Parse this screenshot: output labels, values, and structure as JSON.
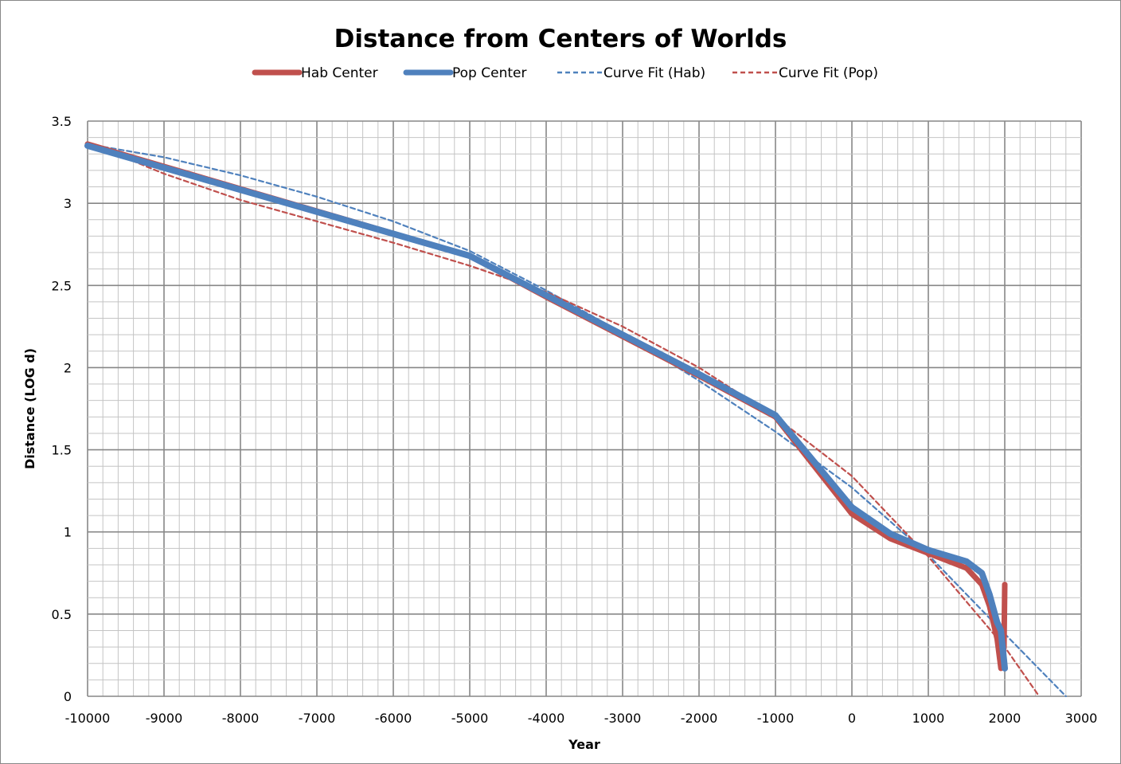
{
  "chart_data": {
    "type": "line",
    "title": "Distance from Centers of Worlds",
    "xlabel": "Year",
    "ylabel": "Distance (LOG d)",
    "xlim": [
      -10000,
      3000
    ],
    "ylim": [
      0,
      3.5
    ],
    "xticks": [
      "-10000",
      "-9000",
      "-8000",
      "-7000",
      "-6000",
      "-5000",
      "-4000",
      "-3000",
      "-2000",
      "-1000",
      "0",
      "1000",
      "2000",
      "3000"
    ],
    "yticks": [
      "0",
      "0.5",
      "1",
      "1.5",
      "2",
      "2.5",
      "3",
      "3.5"
    ],
    "grid": true,
    "legend_position": "top",
    "series": [
      {
        "name": "Hab Center",
        "color": "#c0504d",
        "style": "solid",
        "x": [
          -10000,
          -5000,
          -4000,
          -2000,
          -1000,
          0,
          500,
          1000,
          1500,
          1700,
          1800,
          1900,
          1950,
          1990,
          2000
        ],
        "y": [
          3.36,
          2.68,
          2.43,
          1.95,
          1.7,
          1.11,
          0.96,
          0.87,
          0.78,
          0.68,
          0.55,
          0.35,
          0.17,
          0.3,
          0.68
        ]
      },
      {
        "name": "Pop Center",
        "color": "#4f81bd",
        "style": "solid",
        "x": [
          -10000,
          -5000,
          -4000,
          -2000,
          -1000,
          0,
          500,
          1000,
          1500,
          1700,
          1800,
          1900,
          1950,
          2000
        ],
        "y": [
          3.35,
          2.68,
          2.44,
          1.96,
          1.71,
          1.15,
          0.99,
          0.89,
          0.82,
          0.75,
          0.62,
          0.45,
          0.4,
          0.17
        ]
      },
      {
        "name": "Curve Fit (Hab)",
        "color": "#4f81bd",
        "style": "dashed",
        "x": [
          -10000,
          -9000,
          -8000,
          -7000,
          -6000,
          -5000,
          -4000,
          -3000,
          -2000,
          -1000,
          0,
          1000,
          2000,
          2800
        ],
        "y": [
          3.36,
          3.28,
          3.17,
          3.04,
          2.89,
          2.71,
          2.47,
          2.21,
          1.92,
          1.61,
          1.27,
          0.86,
          0.38,
          0.0
        ]
      },
      {
        "name": "Curve Fit (Pop)",
        "color": "#c0504d",
        "style": "dashed",
        "x": [
          -10000,
          -9000,
          -8000,
          -7000,
          -6000,
          -5000,
          -4000,
          -3000,
          -2000,
          -1000,
          0,
          1000,
          2000,
          2450
        ],
        "y": [
          3.37,
          3.18,
          3.02,
          2.89,
          2.76,
          2.62,
          2.46,
          2.25,
          2.0,
          1.7,
          1.34,
          0.85,
          0.3,
          0.0
        ]
      }
    ]
  }
}
